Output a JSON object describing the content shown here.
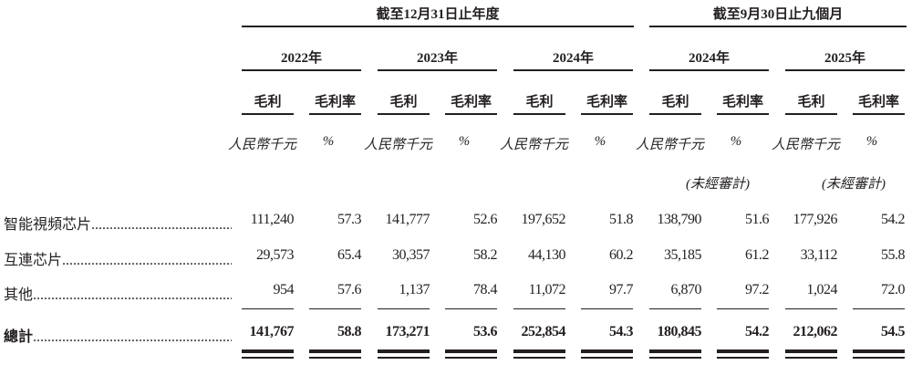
{
  "header": {
    "period_annual": "截至12月31日止年度",
    "period_interim": "截至9月30日止九個月",
    "years": [
      "2022年",
      "2023年",
      "2024年",
      "2024年",
      "2025年"
    ],
    "col_gross_profit": "毛利",
    "col_gross_margin": "毛利率",
    "unit_rmb": "人民幣千元",
    "unit_pct": "%",
    "unaudited": "(未經審計)"
  },
  "rows": [
    {
      "label": "智能視頻芯片",
      "values": [
        "111,240",
        "57.3",
        "141,777",
        "52.6",
        "197,652",
        "51.8",
        "138,790",
        "51.6",
        "177,926",
        "54.2"
      ]
    },
    {
      "label": "互連芯片",
      "values": [
        "29,573",
        "65.4",
        "30,357",
        "58.2",
        "44,130",
        "60.2",
        "35,185",
        "61.2",
        "33,112",
        "55.8"
      ]
    },
    {
      "label": "其他",
      "values": [
        "954",
        "57.6",
        "1,137",
        "78.4",
        "11,072",
        "97.7",
        "6,870",
        "97.2",
        "1,024",
        "72.0"
      ]
    }
  ],
  "total": {
    "label": "總計",
    "values": [
      "141,767",
      "58.8",
      "173,271",
      "53.6",
      "252,854",
      "54.3",
      "180,845",
      "54.2",
      "212,062",
      "54.5"
    ]
  }
}
